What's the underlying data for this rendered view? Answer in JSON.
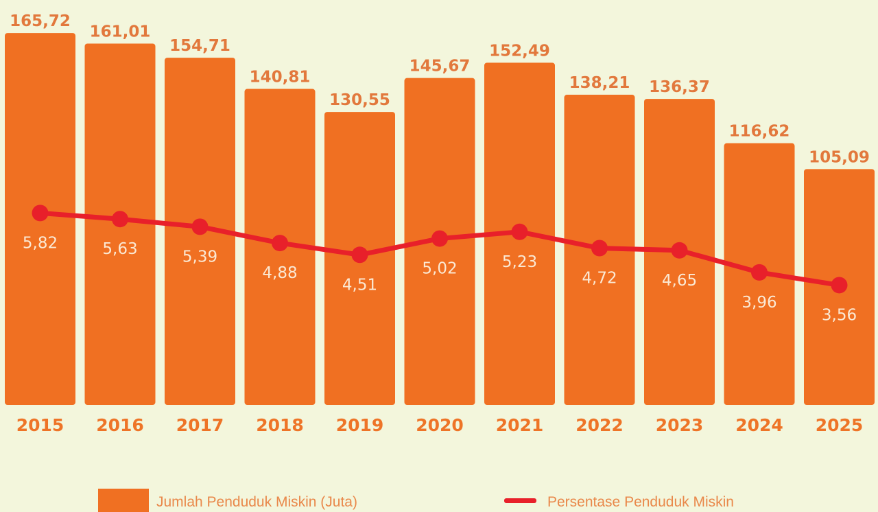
{
  "chart_data": {
    "type": "bar",
    "title": "",
    "xlabel": "",
    "ylabel": "",
    "categories": [
      "2015",
      "2016",
      "2017",
      "2018",
      "2019",
      "2020",
      "2021",
      "2022",
      "2023",
      "2024",
      "2025"
    ],
    "series": [
      {
        "name": "Jumlah Penduduk Miskin (Juta)",
        "type": "bar",
        "values": [
          165.72,
          161.01,
          154.71,
          140.81,
          130.55,
          145.67,
          152.49,
          138.21,
          136.37,
          116.62,
          105.09
        ],
        "labels": [
          "165,72",
          "161,01",
          "154,71",
          "140,81",
          "130,55",
          "145,67",
          "152,49",
          "138,21",
          "136,37",
          "116,62",
          "105,09"
        ],
        "color": "#f07022"
      },
      {
        "name": "Persentase Penduduk Miskin",
        "type": "line",
        "values": [
          5.82,
          5.63,
          5.39,
          4.88,
          4.51,
          5.02,
          5.23,
          4.72,
          4.65,
          3.96,
          3.56
        ],
        "labels": [
          "5,82",
          "5,63",
          "5,39",
          "4,88",
          "4,51",
          "5,02",
          "5,23",
          "4,72",
          "4,65",
          "3,96",
          "3,56"
        ],
        "color": "#e8202a"
      }
    ],
    "grid": false,
    "legend": "bottom"
  },
  "legend": {
    "bar_label": "Jumlah Penduduk Miskin (Juta)",
    "line_label": "Persentase Penduduk Miskin"
  },
  "colors": {
    "background": "#f3f6dc",
    "bar": "#f07022",
    "line": "#e8202a"
  }
}
